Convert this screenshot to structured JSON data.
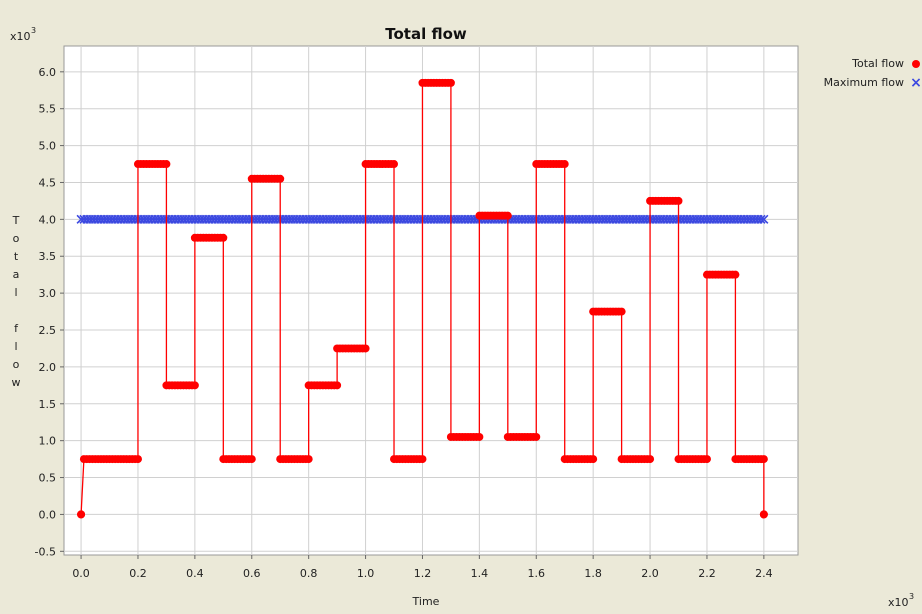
{
  "chart_data": {
    "type": "line",
    "title": "Total flow",
    "xlabel": "Time",
    "ylabel": "Total flow",
    "x_multiplier_label": "x10",
    "y_multiplier_label": "x10",
    "multiplier_exponent": "3",
    "xlim": [
      -0.06,
      2.52
    ],
    "ylim": [
      -0.55,
      6.35
    ],
    "x_ticks": [
      "0.0",
      "0.2",
      "0.4",
      "0.6",
      "0.8",
      "1.0",
      "1.2",
      "1.4",
      "1.6",
      "1.8",
      "2.0",
      "2.2",
      "2.4"
    ],
    "y_ticks": [
      "-0.5",
      "0.0",
      "0.5",
      "1.0",
      "1.5",
      "2.0",
      "2.5",
      "3.0",
      "3.5",
      "4.0",
      "4.5",
      "5.0",
      "5.5",
      "6.0"
    ],
    "grid": true,
    "legend_position": "top-right",
    "series": [
      {
        "name": "Total flow",
        "color": "#ff0000",
        "marker": "circle",
        "segments": [
          {
            "x0": 0.0,
            "x1": 0.0,
            "y": 0.0
          },
          {
            "x0": 0.01,
            "x1": 0.2,
            "y": 0.75
          },
          {
            "x0": 0.2,
            "x1": 0.3,
            "y": 4.75
          },
          {
            "x0": 0.3,
            "x1": 0.4,
            "y": 1.75
          },
          {
            "x0": 0.4,
            "x1": 0.5,
            "y": 3.75
          },
          {
            "x0": 0.5,
            "x1": 0.6,
            "y": 0.75
          },
          {
            "x0": 0.6,
            "x1": 0.7,
            "y": 4.55
          },
          {
            "x0": 0.7,
            "x1": 0.8,
            "y": 0.75
          },
          {
            "x0": 0.8,
            "x1": 0.9,
            "y": 1.75
          },
          {
            "x0": 0.9,
            "x1": 1.0,
            "y": 2.25
          },
          {
            "x0": 1.0,
            "x1": 1.1,
            "y": 4.75
          },
          {
            "x0": 1.1,
            "x1": 1.2,
            "y": 0.75
          },
          {
            "x0": 1.2,
            "x1": 1.3,
            "y": 5.85
          },
          {
            "x0": 1.3,
            "x1": 1.4,
            "y": 1.05
          },
          {
            "x0": 1.4,
            "x1": 1.5,
            "y": 4.05
          },
          {
            "x0": 1.5,
            "x1": 1.6,
            "y": 1.05
          },
          {
            "x0": 1.6,
            "x1": 1.7,
            "y": 4.75
          },
          {
            "x0": 1.7,
            "x1": 1.8,
            "y": 0.75
          },
          {
            "x0": 1.8,
            "x1": 1.9,
            "y": 2.75
          },
          {
            "x0": 1.9,
            "x1": 2.0,
            "y": 0.75
          },
          {
            "x0": 2.0,
            "x1": 2.1,
            "y": 4.25
          },
          {
            "x0": 2.1,
            "x1": 2.2,
            "y": 0.75
          },
          {
            "x0": 2.2,
            "x1": 2.3,
            "y": 3.25
          },
          {
            "x0": 2.3,
            "x1": 2.4,
            "y": 0.75
          },
          {
            "x0": 2.4,
            "x1": 2.4,
            "y": 0.0
          }
        ]
      },
      {
        "name": "Maximum flow",
        "color": "#3b48e0",
        "marker": "x",
        "x_range": [
          0.0,
          2.4
        ],
        "y": 4.0
      }
    ]
  }
}
